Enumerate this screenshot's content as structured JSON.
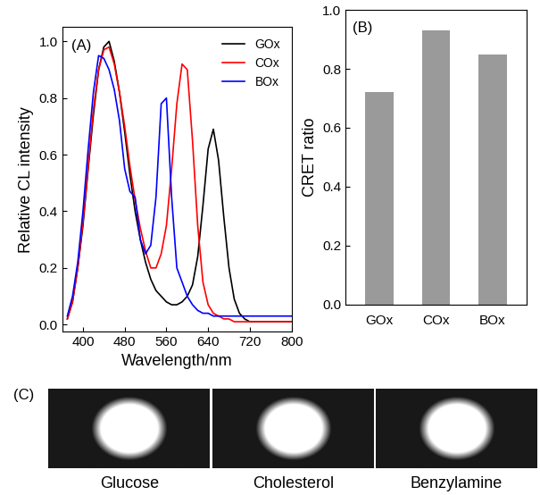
{
  "chart_data": [
    {
      "type": "line",
      "title": "(A)",
      "x_label": "Wavelength/nm",
      "y_label": "Relative CL intensity",
      "x": [
        370,
        380,
        390,
        400,
        410,
        420,
        430,
        440,
        450,
        460,
        470,
        480,
        490,
        500,
        510,
        520,
        530,
        540,
        550,
        560,
        570,
        580,
        590,
        600,
        610,
        620,
        630,
        640,
        650,
        660,
        670,
        680,
        690,
        700,
        710,
        720,
        730,
        740,
        750,
        760,
        770,
        780,
        790,
        800
      ],
      "series": [
        {
          "name": "GOx",
          "color": "#000000",
          "values": [
            0.02,
            0.08,
            0.2,
            0.35,
            0.55,
            0.74,
            0.9,
            0.98,
            1.0,
            0.93,
            0.82,
            0.68,
            0.53,
            0.4,
            0.3,
            0.22,
            0.16,
            0.12,
            0.1,
            0.08,
            0.07,
            0.07,
            0.08,
            0.1,
            0.14,
            0.24,
            0.42,
            0.62,
            0.69,
            0.58,
            0.38,
            0.2,
            0.09,
            0.04,
            0.02,
            0.01,
            0.01,
            0.01,
            0.01,
            0.01,
            0.01,
            0.01,
            0.01,
            0.01
          ]
        },
        {
          "name": "COx",
          "color": "#ff0000",
          "values": [
            0.02,
            0.08,
            0.2,
            0.36,
            0.56,
            0.76,
            0.9,
            0.97,
            0.98,
            0.92,
            0.82,
            0.7,
            0.56,
            0.44,
            0.34,
            0.26,
            0.2,
            0.2,
            0.25,
            0.35,
            0.55,
            0.78,
            0.92,
            0.9,
            0.65,
            0.35,
            0.15,
            0.07,
            0.04,
            0.03,
            0.02,
            0.02,
            0.01,
            0.01,
            0.01,
            0.01,
            0.01,
            0.01,
            0.01,
            0.01,
            0.01,
            0.01,
            0.01,
            0.01
          ]
        },
        {
          "name": "BOx",
          "color": "#0000ff",
          "values": [
            0.03,
            0.1,
            0.22,
            0.4,
            0.62,
            0.82,
            0.95,
            0.94,
            0.9,
            0.83,
            0.72,
            0.55,
            0.47,
            0.45,
            0.3,
            0.25,
            0.28,
            0.45,
            0.78,
            0.8,
            0.45,
            0.2,
            0.15,
            0.1,
            0.07,
            0.05,
            0.04,
            0.04,
            0.03,
            0.03,
            0.03,
            0.03,
            0.03,
            0.03,
            0.03,
            0.03,
            0.03,
            0.03,
            0.03,
            0.03,
            0.03,
            0.03,
            0.03,
            0.03
          ]
        }
      ],
      "xlim": [
        360,
        800
      ],
      "xticks": [
        400,
        480,
        560,
        640,
        720,
        800
      ],
      "ylim": [
        -0.025,
        1.05
      ],
      "yticks": [
        0.0,
        0.2,
        0.4,
        0.6,
        0.8,
        1.0
      ],
      "legend": "upper right"
    },
    {
      "type": "bar",
      "title": "(B)",
      "y_label": "CRET ratio",
      "categories": [
        "GOx",
        "COx",
        "BOx"
      ],
      "values": [
        0.72,
        0.93,
        0.85
      ],
      "color": "#9a9a9a",
      "ylim": [
        0.0,
        1.0
      ],
      "yticks": [
        0.0,
        0.2,
        0.4,
        0.6,
        0.8,
        1.0
      ]
    },
    {
      "type": "image",
      "title": "(C)",
      "categories": [
        "Glucose",
        "Cholesterol",
        "Benzylamine"
      ]
    }
  ]
}
